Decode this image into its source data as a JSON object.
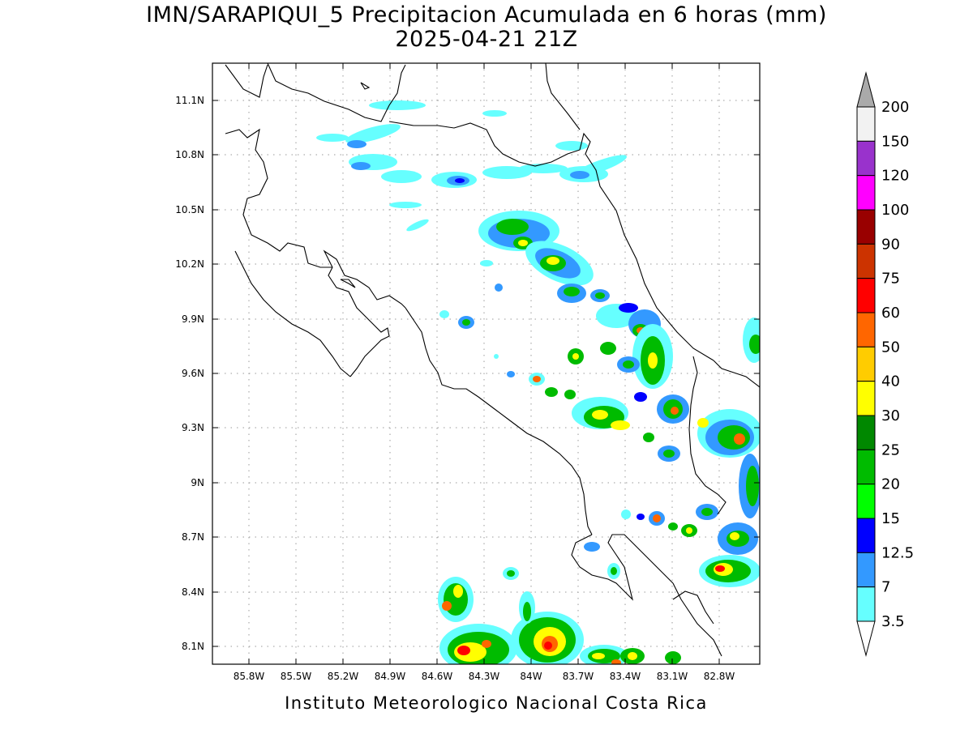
{
  "title_line1": "IMN/SARAPIQUI_5 Precipitacion Acumulada en 6 horas (mm)",
  "title_line2": "2025-04-21 21Z",
  "footer": "Instituto Meteorologico Nacional Costa Rica",
  "map": {
    "lon_range": [
      -85.97,
      -82.98
    ],
    "lat_range": [
      8.0,
      11.3
    ],
    "lon_ticks": [
      "85.8W",
      "85.5W",
      "85.2W",
      "84.9W",
      "84.6W",
      "84.3W",
      "84W",
      "83.7W",
      "83.4W",
      "83.1W",
      "82.8W"
    ],
    "lat_ticks": [
      "11.1N",
      "10.8N",
      "10.5N",
      "10.2N",
      "9.9N",
      "9.6N",
      "9.3N",
      "9N",
      "8.7N",
      "8.4N",
      "8.1N"
    ],
    "grid": true
  },
  "colorbar": {
    "labels": [
      "200",
      "150",
      "120",
      "100",
      "90",
      "75",
      "60",
      "50",
      "40",
      "30",
      "25",
      "20",
      "15",
      "12.5",
      "7",
      "3.5"
    ],
    "colors": [
      "#f2f2f2",
      "#9932cc",
      "#ff00ff",
      "#990000",
      "#cc3300",
      "#ff0000",
      "#ff6600",
      "#ffcc00",
      "#ffff00",
      "#008800",
      "#00bb00",
      "#00ff00",
      "#0000ff",
      "#3399ff",
      "#66ffff"
    ],
    "over_color": "#aaaaaa",
    "under_color": "#ffffff"
  }
}
